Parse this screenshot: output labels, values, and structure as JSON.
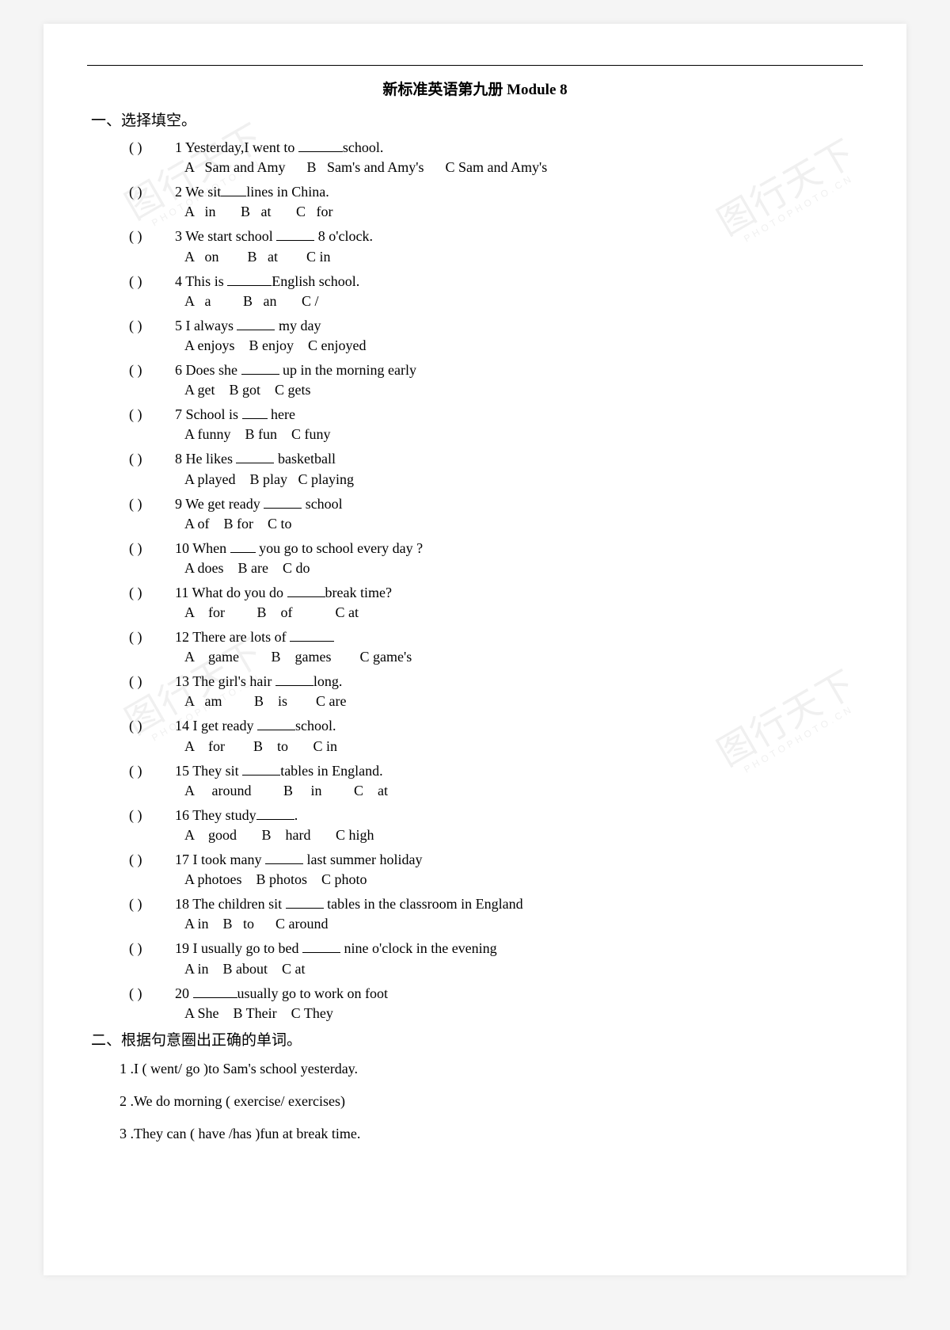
{
  "doc": {
    "title": "新标准英语第九册 Module 8"
  },
  "section1": {
    "title": "一、选择填空。",
    "questions": [
      {
        "num": "1",
        "stem_pre": "Yesterday,I went to ",
        "stem_post": "school.",
        "blank": "l",
        "options": "A   Sam and Amy      B   Sam's and Amy's      C Sam and Amy's"
      },
      {
        "num": "2",
        "stem_pre": "We sit",
        "stem_post": "lines in China.",
        "blank": "s",
        "options": "A   in       B   at       C   for"
      },
      {
        "num": "3",
        "stem_pre": "We start school ",
        "stem_post": " 8 o'clock.",
        "blank": "m",
        "options": "A   on        B   at        C in"
      },
      {
        "num": "4",
        "stem_pre": "This is ",
        "stem_post": "English school.",
        "blank": "l",
        "options": "A   a         B   an       C /"
      },
      {
        "num": "5",
        "stem_pre": "I always ",
        "stem_post": " my day",
        "blank": "m",
        "options": "A enjoys    B enjoy    C enjoyed"
      },
      {
        "num": "6",
        "stem_pre": "Does she ",
        "stem_post": " up in the morning early",
        "blank": "m",
        "options": "A get    B got    C gets"
      },
      {
        "num": "7",
        "stem_pre": "School is ",
        "stem_post": " here",
        "blank": "s",
        "options": "A funny    B fun    C funy"
      },
      {
        "num": "8",
        "stem_pre": "He likes ",
        "stem_post": " basketball",
        "blank": "m",
        "options": "A played    B play   C playing"
      },
      {
        "num": "9",
        "stem_pre": "We get ready ",
        "stem_post": " school",
        "blank": "m",
        "options": "A of    B for    C to"
      },
      {
        "num": "10",
        "stem_pre": "When ",
        "stem_post": " you go to school every day ?",
        "blank": "s",
        "options": "A does    B are    C do"
      },
      {
        "num": "11",
        "stem_pre": "What do you do ",
        "stem_post": "break time?",
        "blank": "m",
        "options": "A    for         B    of            C at"
      },
      {
        "num": "12",
        "stem_pre": "There are lots of ",
        "stem_post": "",
        "blank": "l",
        "options": "A    game         B    games        C game's"
      },
      {
        "num": "13",
        "stem_pre": "The girl's hair ",
        "stem_post": "long.",
        "blank": "m",
        "options": "A   am         B    is        C are"
      },
      {
        "num": "14",
        "stem_pre": "I get ready ",
        "stem_post": "school.",
        "blank": "m",
        "options": "A    for        B    to       C in"
      },
      {
        "num": "15",
        "stem_pre": "They sit ",
        "stem_post": "tables in England.",
        "blank": "m",
        "options": "A     around         B     in         C    at"
      },
      {
        "num": "16",
        "stem_pre": "They study",
        "stem_post": ".",
        "blank": "m",
        "options": "A    good       B    hard       C high"
      },
      {
        "num": "17",
        "stem_pre": "I took many ",
        "stem_post": " last summer holiday",
        "blank": "m",
        "options": "A photoes    B photos    C photo"
      },
      {
        "num": "18",
        "stem_pre": "The children sit ",
        "stem_post": " tables in the classroom in England",
        "blank": "m",
        "options": "A in    B   to      C around"
      },
      {
        "num": "19",
        "stem_pre": "I usually go to bed ",
        "stem_post": " nine o'clock in the evening",
        "blank": "m",
        "options": "A in    B about    C at"
      },
      {
        "num": "20",
        "stem_pre": "",
        "stem_post": "usually go to work on foot",
        "blank": "l",
        "options": "A She    B Their    C They"
      }
    ]
  },
  "section2": {
    "title": "二、根据句意圈出正确的单词。",
    "items": [
      "1 .I ( went/ go )to Sam's school yesterday.",
      "2 .We do morning ( exercise/ exercises)",
      "3 .They can ( have /has )fun at break time."
    ]
  },
  "watermark": {
    "cn": "图行天下",
    "en": "PHOTOPHOTO.CN"
  }
}
